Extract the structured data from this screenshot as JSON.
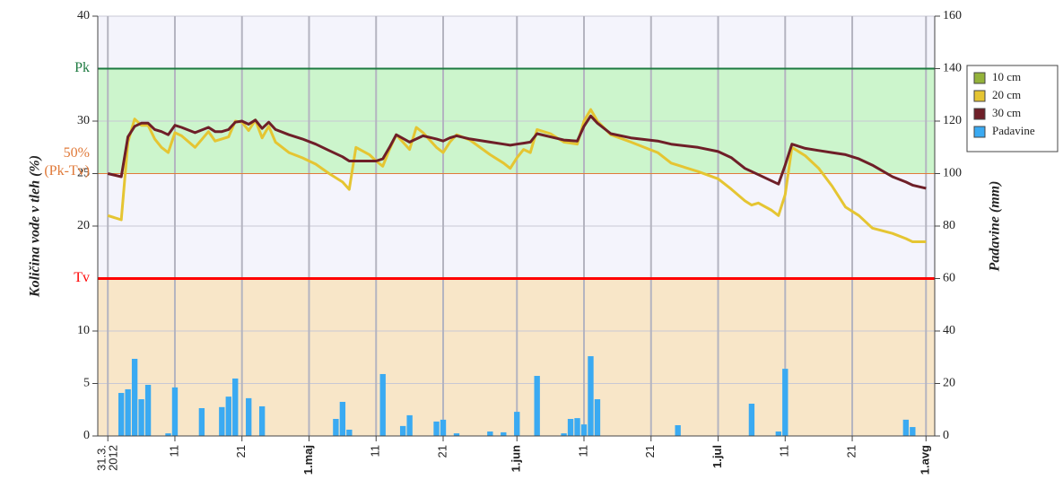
{
  "chart_data": {
    "type": "line",
    "ylabel": "Količina vode v tleh (%)",
    "y2label": "Padavine (mm)",
    "xlim": [
      -1.5,
      123.3
    ],
    "ylim": [
      0,
      40
    ],
    "yticks": [
      0,
      5,
      10,
      20,
      25,
      30,
      40
    ],
    "y2lim": [
      0,
      160
    ],
    "y2ticks": [
      0,
      20,
      40,
      60,
      80,
      100,
      120,
      140,
      160
    ],
    "grid": true,
    "xticks": [
      {
        "value": 0,
        "label": "31.3.",
        "label2": "2012"
      },
      {
        "value": 10,
        "label": "11"
      },
      {
        "value": 20,
        "label": "21"
      },
      {
        "value": 30,
        "label": "1.maj",
        "major": true
      },
      {
        "value": 40,
        "label": "11"
      },
      {
        "value": 50,
        "label": "21"
      },
      {
        "value": 61,
        "label": "1.jun",
        "major": true
      },
      {
        "value": 71,
        "label": "11"
      },
      {
        "value": 81,
        "label": "21"
      },
      {
        "value": 91,
        "label": "1.jul",
        "major": true
      },
      {
        "value": 101,
        "label": "11"
      },
      {
        "value": 111,
        "label": "21"
      },
      {
        "value": 122,
        "label": "1.avg",
        "major": true
      }
    ],
    "reference_lines": [
      {
        "label": [
          "Tv"
        ],
        "value": 15,
        "color": "#ff0000",
        "width": 3
      },
      {
        "label": [
          "50%",
          "(Pk-Tv)"
        ],
        "value": 25,
        "color": "#e07a3a",
        "width": 1
      },
      {
        "label": [
          "Pk"
        ],
        "value": 35,
        "color": "#1d7a40",
        "width": 2
      }
    ],
    "zone_colors": [
      "#f8e6c8",
      "#f4f4fc",
      "#ccf5cc",
      "#f4f4fc"
    ],
    "legend": "right",
    "x": [
      0,
      2,
      3,
      4,
      5,
      6,
      7,
      8,
      9,
      10,
      11,
      13,
      15,
      16,
      17,
      18,
      19,
      20,
      21,
      22,
      23,
      24,
      25,
      27,
      29,
      31,
      33,
      35,
      36,
      37,
      39,
      40,
      41,
      42,
      43,
      45,
      46,
      47,
      49,
      50,
      51,
      52,
      54,
      57,
      59,
      60,
      61,
      62,
      63,
      64,
      66,
      68,
      70,
      71,
      72,
      73,
      75,
      78,
      82,
      84,
      88,
      91,
      93,
      95,
      96,
      97,
      99,
      100,
      101,
      102,
      104,
      106,
      108,
      110,
      112,
      114,
      117,
      119,
      120,
      122
    ],
    "series": [
      {
        "name": "10 cm",
        "color": "#94b33a"
      },
      {
        "name": "20 cm",
        "color": "#e5c532",
        "values": [
          21.0,
          20.6,
          28.0,
          30.2,
          29.6,
          29.6,
          28.3,
          27.5,
          27.0,
          28.9,
          28.6,
          27.5,
          29.0,
          28.1,
          28.3,
          28.5,
          30.0,
          29.9,
          29.1,
          30.1,
          28.4,
          29.5,
          28.0,
          27.0,
          26.5,
          25.9,
          25.0,
          24.2,
          23.5,
          27.5,
          26.8,
          26.2,
          25.7,
          27.3,
          28.7,
          27.3,
          29.4,
          28.9,
          27.5,
          27.0,
          28.0,
          28.7,
          28.2,
          26.8,
          26.0,
          25.5,
          26.5,
          27.3,
          27.0,
          29.2,
          28.8,
          28.0,
          27.8,
          30.0,
          31.1,
          30.0,
          28.7,
          28.0,
          27.0,
          26.0,
          25.2,
          24.5,
          23.5,
          22.4,
          22.0,
          22.2,
          21.5,
          21.0,
          23.0,
          27.5,
          26.7,
          25.5,
          23.8,
          21.8,
          21.0,
          19.8,
          19.3,
          18.8,
          18.5,
          18.5
        ]
      },
      {
        "name": "30 cm",
        "color": "#6e1f28",
        "values": [
          25.0,
          24.7,
          28.5,
          29.5,
          29.8,
          29.8,
          29.2,
          29.0,
          28.7,
          29.6,
          29.4,
          28.9,
          29.4,
          29.0,
          29.0,
          29.2,
          29.9,
          30.0,
          29.7,
          30.1,
          29.3,
          29.9,
          29.2,
          28.7,
          28.3,
          27.8,
          27.2,
          26.6,
          26.2,
          26.2,
          26.2,
          26.2,
          26.4,
          27.5,
          28.7,
          28.0,
          28.3,
          28.6,
          28.3,
          28.1,
          28.4,
          28.6,
          28.3,
          28.0,
          27.8,
          27.7,
          27.8,
          27.9,
          28.0,
          28.8,
          28.5,
          28.2,
          28.1,
          29.5,
          30.5,
          29.8,
          28.8,
          28.4,
          28.1,
          27.8,
          27.5,
          27.1,
          26.5,
          25.5,
          25.2,
          24.9,
          24.3,
          24.0,
          25.8,
          27.8,
          27.4,
          27.2,
          27.0,
          26.8,
          26.4,
          25.8,
          24.7,
          24.2,
          23.9,
          23.6
        ]
      },
      {
        "name": "Padavine",
        "color": "#3aaaf2",
        "type": "bar",
        "axis": "y2",
        "x": [
          2,
          3,
          4,
          5,
          6,
          9,
          10,
          14,
          17,
          18,
          19,
          21,
          23,
          34,
          35,
          36,
          41,
          44,
          45,
          49,
          50,
          52,
          57,
          59,
          61,
          64,
          68,
          69,
          70,
          71,
          72,
          73,
          85,
          96,
          100,
          101,
          119,
          120
        ],
        "values": [
          16.4,
          17.8,
          29.4,
          14.0,
          19.5,
          1.0,
          18.5,
          10.6,
          11.0,
          15.0,
          21.9,
          14.4,
          11.3,
          6.5,
          13.0,
          2.4,
          23.6,
          3.8,
          7.9,
          5.5,
          6.2,
          1.0,
          1.7,
          1.4,
          9.2,
          22.9,
          1.0,
          6.5,
          6.8,
          4.4,
          30.4,
          14.0,
          4.1,
          12.3,
          1.7,
          25.6,
          6.2,
          3.4
        ]
      }
    ]
  }
}
